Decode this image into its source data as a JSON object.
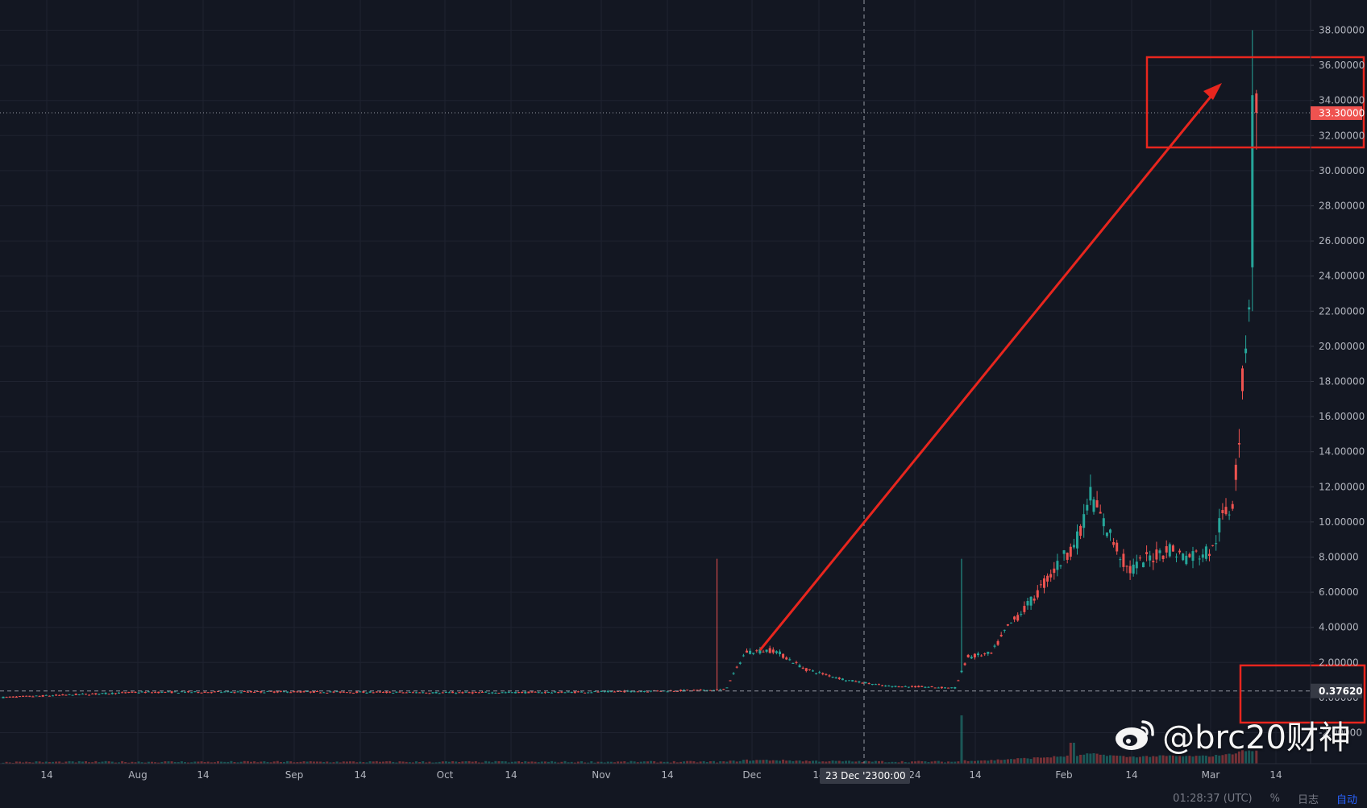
{
  "chart_data": {
    "type": "candlestick",
    "y_axis": {
      "ticks": [
        "38.00000",
        "36.00000",
        "34.00000",
        "32.00000",
        "30.00000",
        "28.00000",
        "26.00000",
        "24.00000",
        "22.00000",
        "20.00000",
        "18.00000",
        "16.00000",
        "14.00000",
        "12.00000",
        "10.00000",
        "8.00000",
        "6.00000",
        "4.00000",
        "2.00000",
        "0.00000",
        "-2.00000"
      ],
      "range": [
        -2.7,
        39.2
      ]
    },
    "x_axis": {
      "ticks": [
        "14",
        "Aug",
        "14",
        "Sep",
        "14",
        "Oct",
        "14",
        "Nov",
        "14",
        "Dec",
        "14",
        "24",
        "14",
        "Feb",
        "14",
        "Mar",
        "14"
      ]
    },
    "last_price": "33.30000",
    "last_price_value": 33.3,
    "crosshair_price": "0.37620",
    "crosshair_price_value": 0.3762,
    "crosshair_time": "23 Dec '23",
    "crosshair_clock": "00:00",
    "key_levels": {
      "dec_spike_high": 7.9,
      "jan_spike_high": 7.9,
      "feb_peak": 12.7,
      "all_time_high": 38.0
    },
    "colors": {
      "up": "#26a69a",
      "down": "#ef5350",
      "background": "#131722",
      "grid": "#1f2330",
      "annotation": "#e8261e"
    }
  },
  "watermark": {
    "text": "@brc20财神",
    "icon": "weibo-logo"
  },
  "status_bar": {
    "clock": "01:28:37 (UTC)",
    "percent": "%",
    "log": "日志",
    "auto": "自动"
  }
}
